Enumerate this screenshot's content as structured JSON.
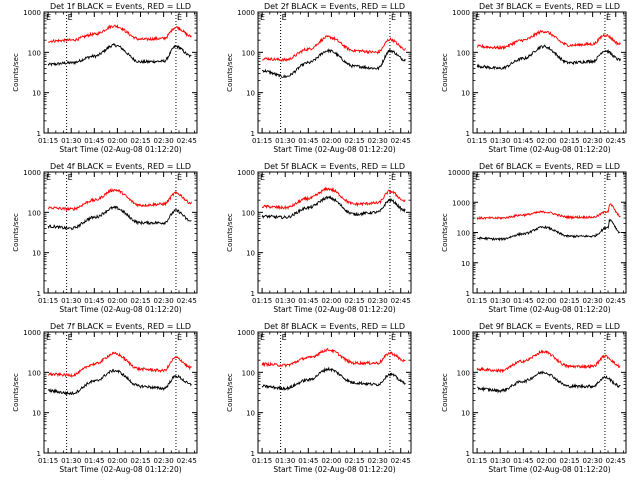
{
  "figure": {
    "ylabel": "Counts/sec",
    "xlabel": "Start Time (02-Aug-08 01:12:20)",
    "xticks": [
      "01:15",
      "01:30",
      "01:45",
      "02:00",
      "02:15",
      "02:30",
      "02:45"
    ],
    "yticks_default": [
      "1",
      "10",
      "100",
      "1000"
    ],
    "yticks_panel6": [
      "1",
      "10",
      "100",
      "1000",
      "10000"
    ],
    "e_marker": "E",
    "colors": {
      "events": "#000000",
      "lld": "#ff0000",
      "axes": "#000000",
      "background": "#ffffff"
    }
  },
  "chart_data": [
    {
      "panel": 1,
      "type": "line",
      "title": "Det 1f BLACK = Events, RED = LLD",
      "xlabel": "Start Time (02-Aug-08 01:12:20)",
      "ylabel": "Counts/sec",
      "ylog": true,
      "ylim": [
        1,
        1000
      ],
      "xlim": [
        "01:12:20",
        "02:51:40"
      ],
      "dotted_lines_at": [
        "01:27",
        "02:38"
      ],
      "series": [
        {
          "name": "Events",
          "x": [
            "01:15",
            "01:30",
            "01:45",
            "01:58",
            "02:15",
            "02:30",
            "02:38",
            "02:48"
          ],
          "values": [
            50,
            55,
            80,
            150,
            58,
            60,
            140,
            80
          ]
        },
        {
          "name": "LLD",
          "x": [
            "01:15",
            "01:30",
            "01:45",
            "01:58",
            "02:15",
            "02:30",
            "02:38",
            "02:48"
          ],
          "values": [
            190,
            200,
            280,
            450,
            210,
            220,
            420,
            250
          ]
        }
      ]
    },
    {
      "panel": 2,
      "type": "line",
      "title": "Det 2f BLACK = Events, RED = LLD",
      "xlabel": "Start Time (02-Aug-08 01:12:20)",
      "ylabel": "Counts/sec",
      "ylog": true,
      "ylim": [
        1,
        1000
      ],
      "xlim": [
        "01:12:20",
        "02:51:40"
      ],
      "dotted_lines_at": [
        "01:27",
        "02:38"
      ],
      "series": [
        {
          "name": "Events",
          "x": [
            "01:15",
            "01:30",
            "01:45",
            "01:58",
            "02:15",
            "02:30",
            "02:38",
            "02:48"
          ],
          "values": [
            35,
            25,
            55,
            110,
            45,
            40,
            110,
            65
          ]
        },
        {
          "name": "LLD",
          "x": [
            "01:15",
            "01:30",
            "01:45",
            "01:58",
            "02:15",
            "02:30",
            "02:38",
            "02:48"
          ],
          "values": [
            70,
            65,
            120,
            240,
            110,
            100,
            210,
            120
          ]
        }
      ]
    },
    {
      "panel": 3,
      "type": "line",
      "title": "Det 3f BLACK = Events, RED = LLD",
      "xlabel": "Start Time (02-Aug-08 01:12:20)",
      "ylabel": "Counts/sec",
      "ylog": true,
      "ylim": [
        1,
        1000
      ],
      "xlim": [
        "01:12:20",
        "02:51:40"
      ],
      "dotted_lines_at": [
        "02:38"
      ],
      "series": [
        {
          "name": "Events",
          "x": [
            "01:15",
            "01:30",
            "01:45",
            "01:58",
            "02:15",
            "02:30",
            "02:38",
            "02:48"
          ],
          "values": [
            45,
            40,
            70,
            140,
            55,
            60,
            110,
            65
          ]
        },
        {
          "name": "LLD",
          "x": [
            "01:15",
            "01:30",
            "01:45",
            "01:58",
            "02:15",
            "02:30",
            "02:38",
            "02:48"
          ],
          "values": [
            140,
            130,
            200,
            330,
            150,
            160,
            270,
            160
          ]
        }
      ]
    },
    {
      "panel": 4,
      "type": "line",
      "title": "Det 4f BLACK = Events, RED = LLD",
      "xlabel": "Start Time (02-Aug-08 01:12:20)",
      "ylabel": "Counts/sec",
      "ylog": true,
      "ylim": [
        1,
        1000
      ],
      "xlim": [
        "01:12:20",
        "02:51:40"
      ],
      "dotted_lines_at": [
        "01:27",
        "02:38"
      ],
      "series": [
        {
          "name": "Events",
          "x": [
            "01:15",
            "01:30",
            "01:45",
            "01:58",
            "02:15",
            "02:30",
            "02:38",
            "02:48"
          ],
          "values": [
            45,
            40,
            75,
            130,
            55,
            55,
            110,
            60
          ]
        },
        {
          "name": "LLD",
          "x": [
            "01:15",
            "01:30",
            "01:45",
            "01:58",
            "02:15",
            "02:30",
            "02:38",
            "02:48"
          ],
          "values": [
            130,
            120,
            200,
            360,
            150,
            160,
            300,
            170
          ]
        }
      ]
    },
    {
      "panel": 5,
      "type": "line",
      "title": "Det 5f BLACK = Events, RED = LLD",
      "xlabel": "Start Time (02-Aug-08 01:12:20)",
      "ylabel": "Counts/sec",
      "ylog": true,
      "ylim": [
        1,
        1000
      ],
      "xlim": [
        "01:12:20",
        "02:51:40"
      ],
      "dotted_lines_at": [
        "02:38"
      ],
      "series": [
        {
          "name": "Events",
          "x": [
            "01:15",
            "01:30",
            "01:45",
            "01:58",
            "02:15",
            "02:30",
            "02:38",
            "02:48"
          ],
          "values": [
            80,
            75,
            130,
            230,
            90,
            100,
            200,
            110
          ]
        },
        {
          "name": "LLD",
          "x": [
            "01:15",
            "01:30",
            "01:45",
            "01:58",
            "02:15",
            "02:30",
            "02:38",
            "02:48"
          ],
          "values": [
            140,
            130,
            220,
            380,
            160,
            170,
            330,
            190
          ]
        }
      ]
    },
    {
      "panel": 6,
      "type": "line",
      "title": "Det 6f BLACK = Events, RED = LLD",
      "xlabel": "Start Time (02-Aug-08 01:12:20)",
      "ylabel": "Counts/sec",
      "ylog": true,
      "ylim": [
        1,
        10000
      ],
      "xlim": [
        "01:12:20",
        "02:51:40"
      ],
      "dotted_lines_at": [
        "02:38"
      ],
      "series": [
        {
          "name": "Events",
          "x": [
            "01:15",
            "01:30",
            "01:45",
            "01:58",
            "02:15",
            "02:30",
            "02:40",
            "02:41",
            "02:48"
          ],
          "values": [
            65,
            60,
            90,
            150,
            75,
            75,
            150,
            260,
            100
          ]
        },
        {
          "name": "LLD",
          "x": [
            "01:15",
            "01:30",
            "01:45",
            "01:58",
            "02:15",
            "02:30",
            "02:40",
            "02:41",
            "02:48"
          ],
          "values": [
            300,
            300,
            380,
            480,
            320,
            320,
            500,
            850,
            350
          ]
        }
      ]
    },
    {
      "panel": 7,
      "type": "line",
      "title": "Det 7f BLACK = Events, RED = LLD",
      "xlabel": "Start Time (02-Aug-08 01:12:20)",
      "ylabel": "Counts/sec",
      "ylog": true,
      "ylim": [
        1,
        1000
      ],
      "xlim": [
        "01:12:20",
        "02:51:40"
      ],
      "dotted_lines_at": [
        "01:27",
        "02:38"
      ],
      "series": [
        {
          "name": "Events",
          "x": [
            "01:15",
            "01:30",
            "01:45",
            "01:58",
            "02:15",
            "02:30",
            "02:38",
            "02:48"
          ],
          "values": [
            35,
            30,
            60,
            110,
            45,
            40,
            80,
            50
          ]
        },
        {
          "name": "LLD",
          "x": [
            "01:15",
            "01:30",
            "01:45",
            "01:58",
            "02:15",
            "02:30",
            "02:38",
            "02:48"
          ],
          "values": [
            90,
            85,
            160,
            290,
            120,
            110,
            230,
            130
          ]
        }
      ]
    },
    {
      "panel": 8,
      "type": "line",
      "title": "Det 8f BLACK = Events, RED = LLD",
      "xlabel": "Start Time (02-Aug-08 01:12:20)",
      "ylabel": "Counts/sec",
      "ylog": true,
      "ylim": [
        1,
        1000
      ],
      "xlim": [
        "01:12:20",
        "02:51:40"
      ],
      "dotted_lines_at": [
        "01:27",
        "02:38"
      ],
      "series": [
        {
          "name": "Events",
          "x": [
            "01:15",
            "01:30",
            "01:45",
            "01:58",
            "02:15",
            "02:30",
            "02:38",
            "02:48"
          ],
          "values": [
            45,
            40,
            65,
            120,
            55,
            50,
            90,
            55
          ]
        },
        {
          "name": "LLD",
          "x": [
            "01:15",
            "01:30",
            "01:45",
            "01:58",
            "02:15",
            "02:30",
            "02:38",
            "02:48"
          ],
          "values": [
            160,
            150,
            230,
            360,
            170,
            170,
            300,
            190
          ]
        }
      ]
    },
    {
      "panel": 9,
      "type": "line",
      "title": "Det 9f BLACK = Events, RED = LLD",
      "xlabel": "Start Time (02-Aug-08 01:12:20)",
      "ylabel": "Counts/sec",
      "ylog": true,
      "ylim": [
        1,
        1000
      ],
      "xlim": [
        "01:12:20",
        "02:51:40"
      ],
      "dotted_lines_at": [
        "02:38"
      ],
      "series": [
        {
          "name": "Events",
          "x": [
            "01:15",
            "01:30",
            "01:45",
            "01:58",
            "02:15",
            "02:30",
            "02:38",
            "02:48"
          ],
          "values": [
            40,
            35,
            60,
            100,
            45,
            45,
            75,
            45
          ]
        },
        {
          "name": "LLD",
          "x": [
            "01:15",
            "01:30",
            "01:45",
            "01:58",
            "02:15",
            "02:30",
            "02:38",
            "02:48"
          ],
          "values": [
            120,
            110,
            190,
            320,
            140,
            140,
            250,
            140
          ]
        }
      ]
    }
  ]
}
